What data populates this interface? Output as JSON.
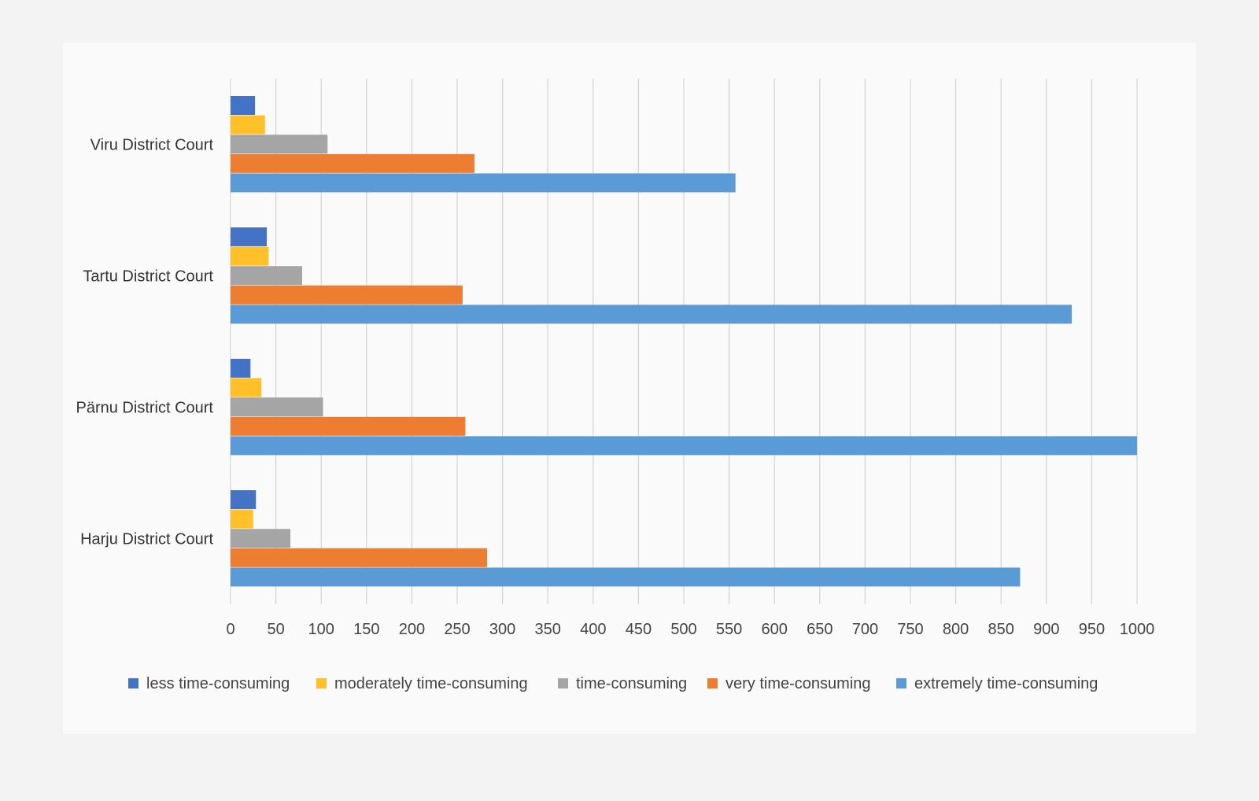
{
  "chart_data": {
    "type": "bar",
    "orientation": "horizontal",
    "categories": [
      "Viru District Court",
      "Tartu District Court",
      "Pärnu District Court",
      "Harju District Court"
    ],
    "series": [
      {
        "name": "less time-consuming",
        "color": "#4472c4",
        "values": [
          27,
          40,
          22,
          28
        ]
      },
      {
        "name": "moderately time-consuming",
        "color": "#ffc02a",
        "values": [
          38,
          42,
          34,
          25
        ]
      },
      {
        "name": "time-consuming",
        "color": "#a5a5a5",
        "values": [
          107,
          79,
          102,
          66
        ]
      },
      {
        "name": "very time-consuming",
        "color": "#ed7d31",
        "values": [
          269,
          256,
          259,
          283
        ]
      },
      {
        "name": "extremely time-consuming",
        "color": "#5b9bd5",
        "values": [
          557,
          928,
          1000,
          871
        ]
      }
    ],
    "xlim": [
      0,
      1000
    ],
    "xticks": [
      "0",
      "50",
      "100",
      "150",
      "200",
      "250",
      "300",
      "350",
      "400",
      "450",
      "500",
      "550",
      "600",
      "650",
      "700",
      "750",
      "800",
      "850",
      "900",
      "950",
      "1000"
    ],
    "grid": true,
    "legend_position": "bottom",
    "title": "",
    "xlabel": "",
    "ylabel": ""
  }
}
